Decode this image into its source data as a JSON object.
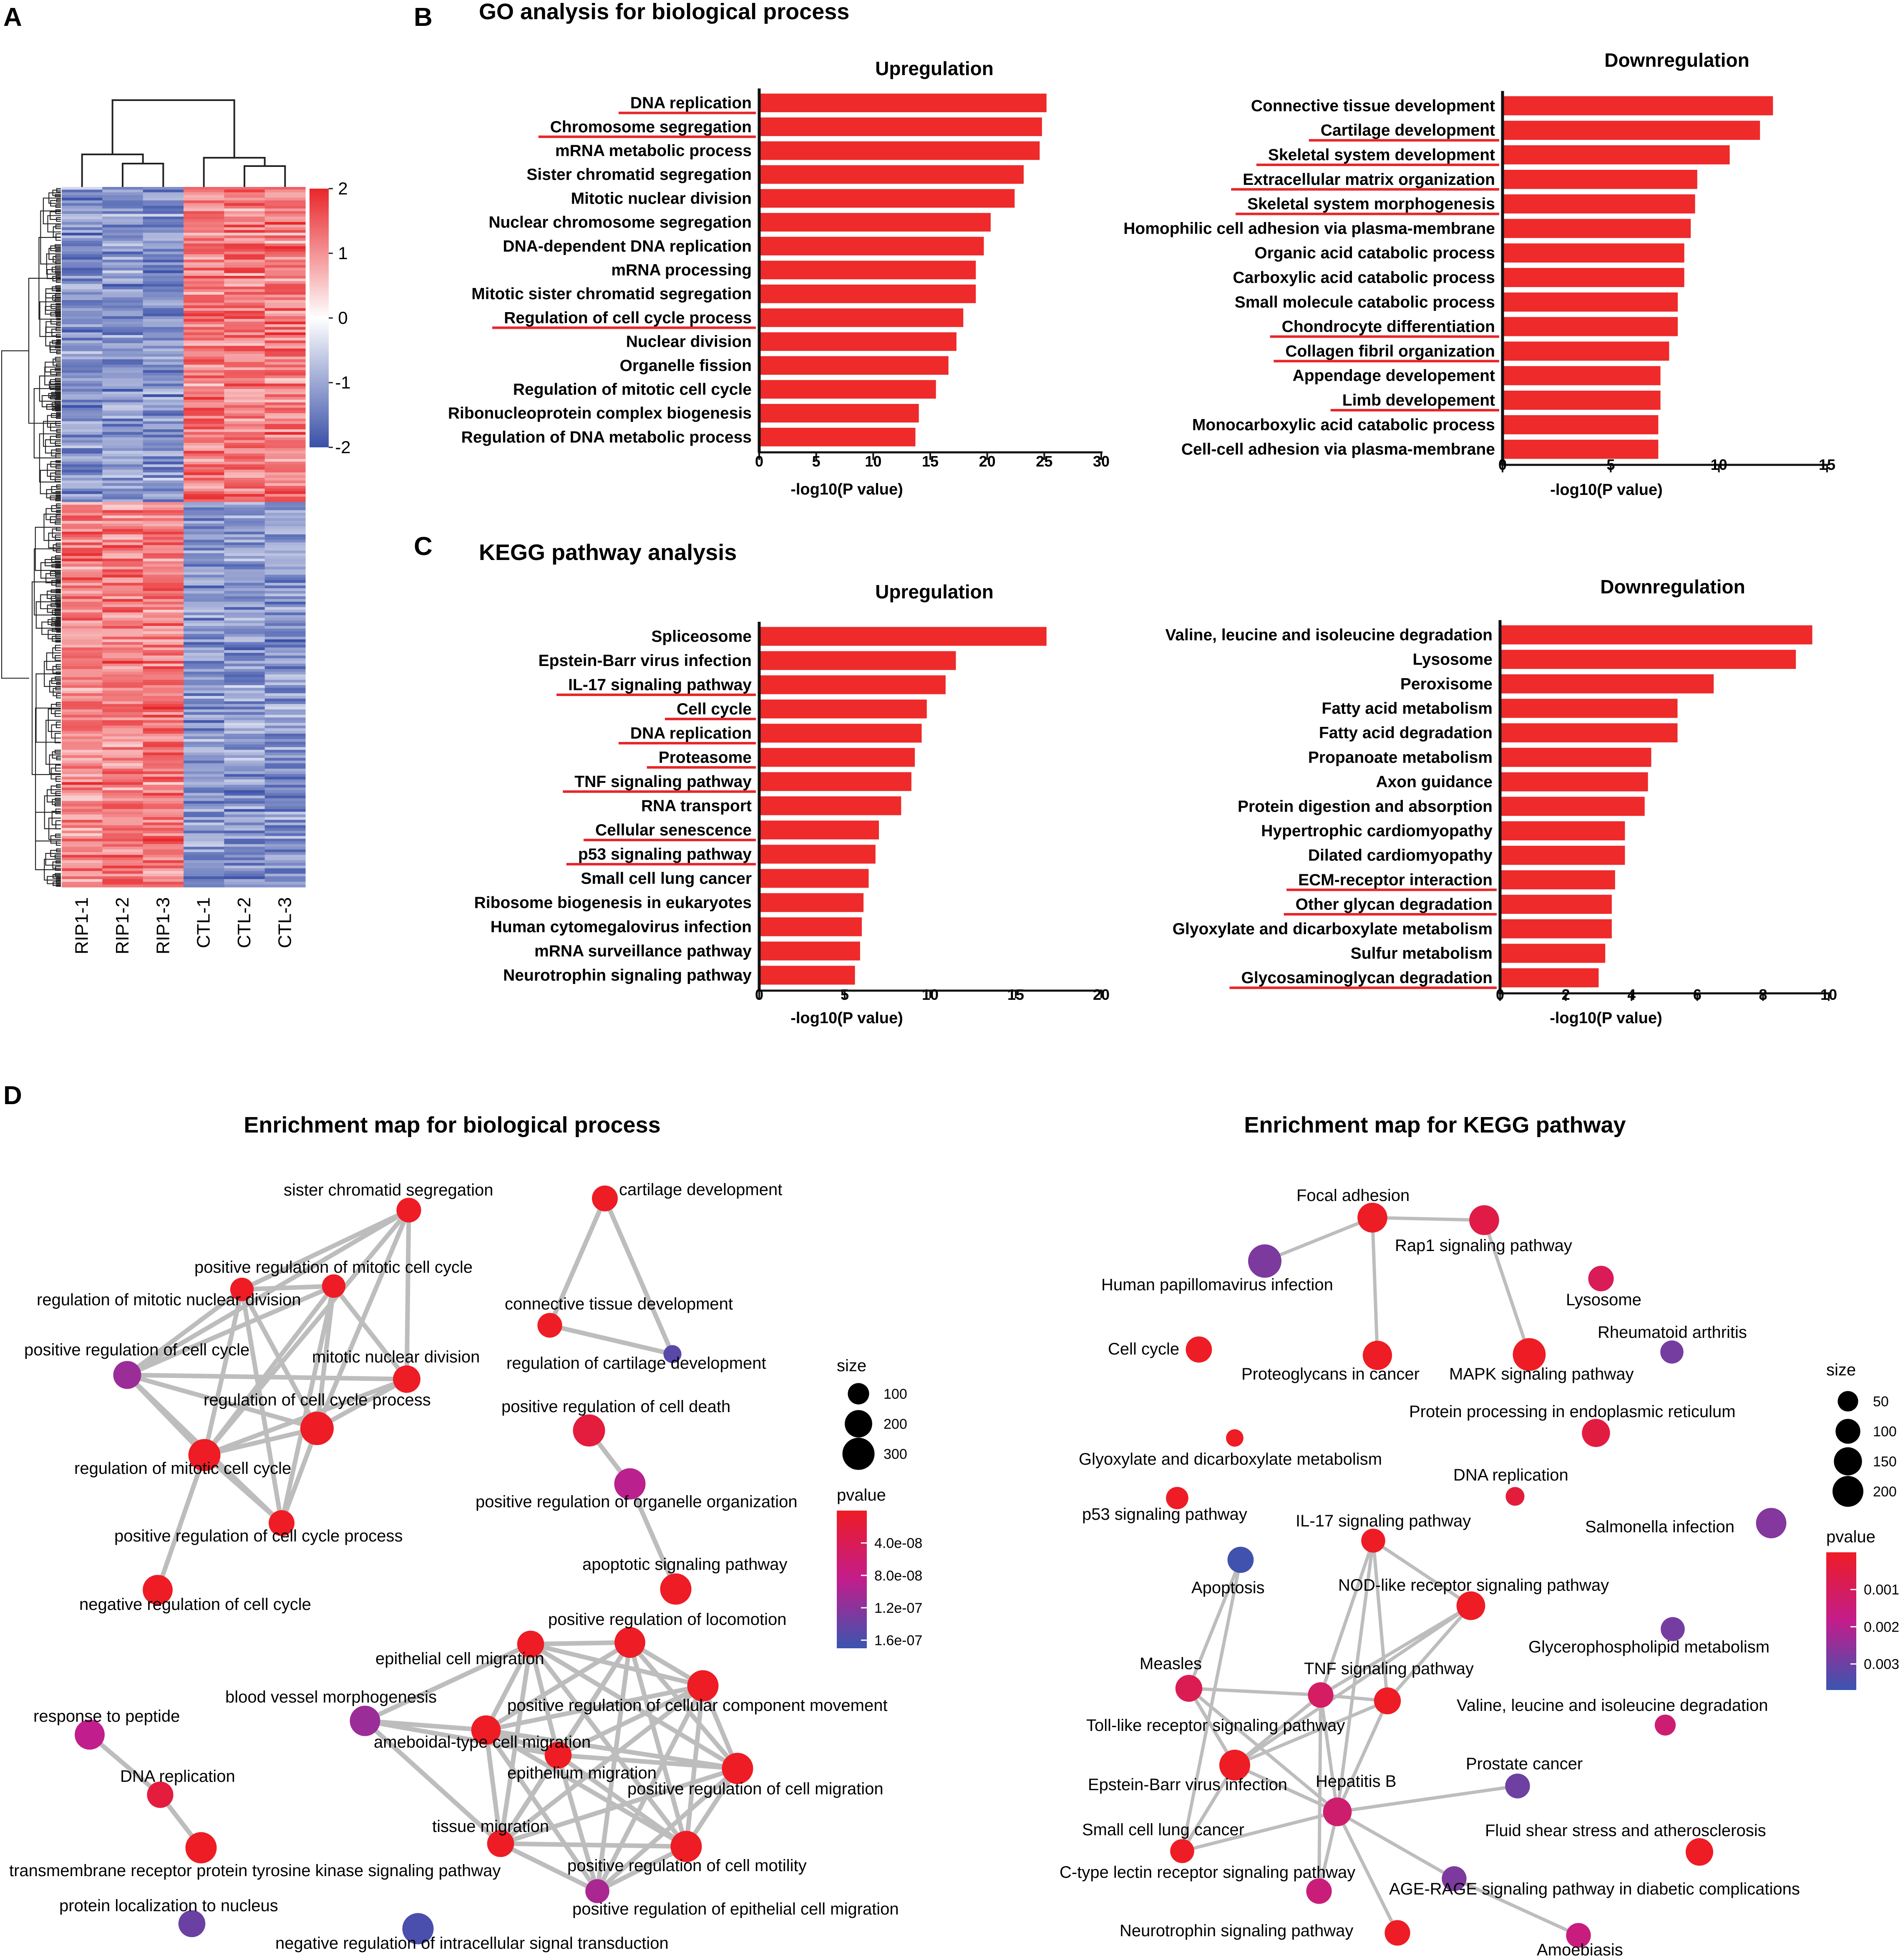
{
  "panels": {
    "A": "A",
    "B": "B",
    "B_title": "GO analysis for biological process",
    "C": "C",
    "C_title": "KEGG pathway analysis",
    "D": "D"
  },
  "colors": {
    "bar": "#ee2a2a",
    "underline": "#e8262a",
    "edge": "#bdbdbd",
    "heat_high": "#e8262a",
    "heat_mid": "#ffffff",
    "heat_low": "#3a50a8"
  },
  "heatmap": {
    "samples": [
      "RIP1-1",
      "RIP1-2",
      "RIP1-3",
      "CTL-1",
      "CTL-2",
      "CTL-3"
    ],
    "scale_ticks": [
      "2",
      "1",
      "0",
      "-1",
      "-2"
    ],
    "scale_values": [
      2,
      1,
      0,
      -1,
      -2
    ]
  },
  "chart_data": [
    {
      "id": "go_up",
      "type": "bar",
      "orientation": "horizontal",
      "title": "Upregulation",
      "xlabel": "-log10(P value)",
      "xlim": [
        0,
        30
      ],
      "xticks": [
        0,
        5,
        10,
        15,
        20,
        25,
        30
      ],
      "categories": [
        "DNA replication",
        "Chromosome segregation",
        "mRNA metabolic process",
        "Sister chromatid segregation",
        "Mitotic nuclear division",
        "Nuclear chromosome segregation",
        "DNA-dependent DNA replication",
        "mRNA processing",
        "Mitotic sister chromatid segregation",
        "Regulation of cell cycle process",
        "Nuclear division",
        "Organelle fission",
        "Regulation of mitotic cell cycle",
        "Ribonucleoprotein complex biogenesis",
        "Regulation of DNA metabolic process"
      ],
      "values": [
        25.2,
        24.8,
        24.6,
        23.2,
        22.4,
        20.3,
        19.7,
        19.0,
        19.0,
        17.9,
        17.3,
        16.6,
        15.5,
        14.0,
        13.7
      ],
      "underlined": [
        true,
        true,
        false,
        false,
        false,
        false,
        false,
        false,
        false,
        true,
        false,
        false,
        false,
        false,
        false
      ]
    },
    {
      "id": "go_down",
      "type": "bar",
      "orientation": "horizontal",
      "title": "Downregulation",
      "xlabel": "-log10(P value)",
      "xlim": [
        0,
        15
      ],
      "xticks": [
        0,
        5,
        10,
        15
      ],
      "categories": [
        "Connective tissue development",
        "Cartilage development",
        "Skeletal system development",
        "Extracellular matrix organization",
        "Skeletal system morphogenesis",
        "Homophilic cell adhesion via plasma-membrane",
        "Organic acid catabolic process",
        "Carboxylic acid catabolic process",
        "Small molecule catabolic process",
        "Chondrocyte differentiation",
        "Collagen fibril organization",
        "Appendage developement",
        "Limb developement",
        "Monocarboxylic acid catabolic process",
        "Cell-cell adhesion via plasma-membrane"
      ],
      "values": [
        12.5,
        11.9,
        10.5,
        9.0,
        8.9,
        8.7,
        8.4,
        8.4,
        8.1,
        8.1,
        7.7,
        7.3,
        7.3,
        7.2,
        7.2
      ],
      "underlined": [
        false,
        true,
        true,
        true,
        true,
        false,
        false,
        false,
        false,
        true,
        true,
        false,
        true,
        false,
        false
      ]
    },
    {
      "id": "kegg_up",
      "type": "bar",
      "orientation": "horizontal",
      "title": "Upregulation",
      "xlabel": "-log10(P value)",
      "xlim": [
        0,
        20
      ],
      "xticks": [
        0,
        5,
        10,
        15,
        20
      ],
      "categories": [
        "Spliceosome",
        "Epstein-Barr virus infection",
        "IL-17 signaling pathway",
        "Cell cycle",
        "DNA replication",
        "Proteasome",
        "TNF signaling pathway",
        "RNA transport",
        "Cellular senescence",
        "p53 signaling pathway",
        "Small cell lung cancer",
        "Ribosome biogenesis in eukaryotes",
        "Human cytomegalovirus infection",
        "mRNA surveillance pathway",
        "Neurotrophin signaling pathway"
      ],
      "values": [
        16.8,
        11.5,
        10.9,
        9.8,
        9.5,
        9.1,
        8.9,
        8.3,
        7.0,
        6.8,
        6.4,
        6.1,
        6.0,
        5.9,
        5.6
      ],
      "underlined": [
        false,
        false,
        true,
        true,
        true,
        true,
        true,
        false,
        true,
        true,
        false,
        false,
        false,
        false,
        false
      ]
    },
    {
      "id": "kegg_down",
      "type": "bar",
      "orientation": "horizontal",
      "title": "Downregulation",
      "xlabel": "-log10(P value)",
      "xlim": [
        0,
        10
      ],
      "xticks": [
        0,
        2,
        4,
        6,
        8,
        10
      ],
      "categories": [
        "Valine, leucine and isoleucine degradation",
        "Lysosome",
        "Peroxisome",
        "Fatty acid metabolism",
        "Fatty acid degradation",
        "Propanoate metabolism",
        "Axon guidance",
        "Protein digestion and absorption",
        "Hypertrophic cardiomyopathy",
        "Dilated cardiomyopathy",
        "ECM-receptor interaction",
        "Other glycan degradation",
        "Glyoxylate and dicarboxylate metabolism",
        "Sulfur metabolism",
        "Glycosaminoglycan degradation"
      ],
      "values": [
        9.5,
        9.0,
        6.5,
        5.4,
        5.4,
        4.6,
        4.5,
        4.4,
        3.8,
        3.8,
        3.5,
        3.4,
        3.4,
        3.2,
        3.0
      ],
      "underlined": [
        false,
        false,
        false,
        false,
        false,
        false,
        false,
        false,
        false,
        false,
        true,
        true,
        false,
        false,
        true
      ]
    }
  ],
  "maps": {
    "bp": {
      "title": "Enrichment map for biological process",
      "nodes": [
        {
          "id": "scs",
          "label": "sister chromatid segregation",
          "size": 150,
          "pvalue": 0.0
        },
        {
          "id": "prmcc",
          "label": "positive regulation of mitotic cell cycle",
          "size": 130,
          "pvalue": 0.0
        },
        {
          "id": "rmnd",
          "label": "regulation of mitotic nuclear division",
          "size": 130,
          "pvalue": 0.0
        },
        {
          "id": "prcc",
          "label": "positive regulation of cell cycle",
          "size": 210,
          "pvalue": 1.1e-07
        },
        {
          "id": "mnd",
          "label": "mitotic nuclear division",
          "size": 200,
          "pvalue": 0.0
        },
        {
          "id": "rccp",
          "label": "regulation of cell cycle process",
          "size": 330,
          "pvalue": 0.0
        },
        {
          "id": "rmcc",
          "label": "regulation of mitotic cell cycle",
          "size": 300,
          "pvalue": 0.0
        },
        {
          "id": "prccp",
          "label": "positive regulation of cell cycle process",
          "size": 170,
          "pvalue": 0.0
        },
        {
          "id": "nrcc",
          "label": "negative regulation of cell cycle",
          "size": 250,
          "pvalue": 0.0
        },
        {
          "id": "cd",
          "label": "cartilage development",
          "size": 170,
          "pvalue": 0.0
        },
        {
          "id": "ctd",
          "label": "connective tissue development",
          "size": 150,
          "pvalue": 0.0
        },
        {
          "id": "rcd",
          "label": "regulation of cartilage development",
          "size": 60,
          "pvalue": 1.5e-07
        },
        {
          "id": "prcdeath",
          "label": "positive regulation of cell death",
          "size": 300,
          "pvalue": 2e-08
        },
        {
          "id": "proo",
          "label": "positive regulation of organelle organization",
          "size": 280,
          "pvalue": 9e-08
        },
        {
          "id": "asp",
          "label": "apoptotic signaling pathway",
          "size": 280,
          "pvalue": 0.0
        },
        {
          "id": "prl",
          "label": "positive regulation of locomotion",
          "size": 270,
          "pvalue": 0.0
        },
        {
          "id": "ecm",
          "label": "epithelial cell migration",
          "size": 190,
          "pvalue": 0.0
        },
        {
          "id": "prccm",
          "label": "positive regulation of cellular component movement",
          "size": 280,
          "pvalue": 0.0
        },
        {
          "id": "bvm",
          "label": "blood vessel morphogenesis",
          "size": 260,
          "pvalue": 1.1e-07
        },
        {
          "id": "atcm",
          "label": "ameboidal-type cell migration",
          "size": 240,
          "pvalue": 0.0
        },
        {
          "id": "em",
          "label": "epithelium migration",
          "size": 190,
          "pvalue": 0.0
        },
        {
          "id": "prcmig",
          "label": "positive regulation of cell migration",
          "size": 280,
          "pvalue": 0.0
        },
        {
          "id": "tm",
          "label": "tissue migration",
          "size": 190,
          "pvalue": 0.0
        },
        {
          "id": "prcmot",
          "label": "positive regulation of cell motility",
          "size": 280,
          "pvalue": 0.0
        },
        {
          "id": "precm",
          "label": "positive regulation of epithelial cell migration",
          "size": 140,
          "pvalue": 1e-07
        },
        {
          "id": "rtp",
          "label": "response to peptide",
          "size": 250,
          "pvalue": 8.5e-08
        },
        {
          "id": "dnarep",
          "label": "DNA replication",
          "size": 180,
          "pvalue": 2e-08
        },
        {
          "id": "trptk",
          "label": "transmembrane receptor protein tyrosine kinase signaling pathway",
          "size": 280,
          "pvalue": 0.0
        },
        {
          "id": "pln",
          "label": "protein localization to nucleus",
          "size": 190,
          "pvalue": 1.4e-07
        },
        {
          "id": "nrist",
          "label": "negative regulation of intracellular signal transduction",
          "size": 280,
          "pvalue": 1.6e-07
        }
      ],
      "legend": {
        "size_title": "size",
        "sizes": [
          100,
          200,
          300
        ],
        "pvalue_title": "pvalue",
        "pvalue_ticks": [
          "4.0e-08",
          "8.0e-08",
          "1.2e-07",
          "1.6e-07"
        ],
        "pvalue_values": [
          4e-08,
          8e-08,
          1.2e-07,
          1.6e-07
        ],
        "pvalue_range": [
          0,
          1.7e-07
        ]
      }
    },
    "kegg": {
      "title": "Enrichment map for KEGG pathway",
      "nodes": [
        {
          "id": "fa",
          "label": "Focal adhesion",
          "size": 180,
          "pvalue": 0.0
        },
        {
          "id": "rap1",
          "label": "Rap1 signaling pathway",
          "size": 180,
          "pvalue": 0.0006
        },
        {
          "id": "hpv",
          "label": "Human papillomavirus infection",
          "size": 250,
          "pvalue": 0.0028
        },
        {
          "id": "lys",
          "label": "Lysosome",
          "size": 110,
          "pvalue": 0.0009
        },
        {
          "id": "ra",
          "label": "Rheumatoid arthritis",
          "size": 80,
          "pvalue": 0.0029
        },
        {
          "id": "cc",
          "label": "Cell cycle",
          "size": 120,
          "pvalue": 0.0
        },
        {
          "id": "pgc",
          "label": "Proteoglycans in cancer",
          "size": 170,
          "pvalue": 0.0
        },
        {
          "id": "mapk",
          "label": "MAPK signaling pathway",
          "size": 240,
          "pvalue": 0.0
        },
        {
          "id": "ppe",
          "label": "Protein processing in endoplasmic reticulum",
          "size": 150,
          "pvalue": 0.0005
        },
        {
          "id": "gdm",
          "label": "Glyoxylate and dicarboxylate metabolism",
          "size": 25,
          "pvalue": 0.0
        },
        {
          "id": "dnar",
          "label": "DNA replication",
          "size": 35,
          "pvalue": 0.0004
        },
        {
          "id": "p53",
          "label": "p53 signaling pathway",
          "size": 70,
          "pvalue": 0.0
        },
        {
          "id": "il17",
          "label": "IL-17 signaling pathway",
          "size": 90,
          "pvalue": 0.0
        },
        {
          "id": "sal",
          "label": "Salmonella infection",
          "size": 190,
          "pvalue": 0.0027
        },
        {
          "id": "apo",
          "label": "Apoptosis",
          "size": 120,
          "pvalue": 0.0036
        },
        {
          "id": "nod",
          "label": "NOD-like receptor signaling pathway",
          "size": 160,
          "pvalue": 0.0
        },
        {
          "id": "gpm",
          "label": "Glycerophospholipid metabolism",
          "size": 90,
          "pvalue": 0.0029
        },
        {
          "id": "mea",
          "label": "Measles",
          "size": 130,
          "pvalue": 0.0008
        },
        {
          "id": "tnf",
          "label": "TNF signaling pathway",
          "size": 110,
          "pvalue": 0.0011
        },
        {
          "id": "tnf2",
          "label": "TNF signaling pathway",
          "size": 130,
          "pvalue": 0.0
        },
        {
          "id": "tlr",
          "label": "Toll-like receptor signaling pathway",
          "size": 180,
          "pvalue": 0.0002
        },
        {
          "id": "vli",
          "label": "Valine, leucine and isoleucine degradation",
          "size": 55,
          "pvalue": 0.0014
        },
        {
          "id": "ebv",
          "label": "Epstein-Barr virus infection",
          "size": 200,
          "pvalue": 0.0
        },
        {
          "id": "hepb",
          "label": "Hepatitis B",
          "size": 160,
          "pvalue": 0.0013
        },
        {
          "id": "pc",
          "label": "Prostate cancer",
          "size": 100,
          "pvalue": 0.003
        },
        {
          "id": "sclc",
          "label": "Small cell lung cancer",
          "size": 90,
          "pvalue": 0.0
        },
        {
          "id": "ctlr",
          "label": "C-type lectin receptor signaling pathway",
          "size": 110,
          "pvalue": 0.0015
        },
        {
          "id": "fss",
          "label": "Fluid shear stress and atherosclerosis",
          "size": 140,
          "pvalue": 0.0
        },
        {
          "id": "age",
          "label": "AGE-RAGE signaling pathway in diabetic complications",
          "size": 100,
          "pvalue": 0.0028
        },
        {
          "id": "neuro",
          "label": "Neurotrophin signaling pathway",
          "size": 110,
          "pvalue": 0.0
        },
        {
          "id": "amo",
          "label": "Amoebiasis",
          "size": 100,
          "pvalue": 0.0016
        }
      ],
      "legend": {
        "size_title": "size",
        "sizes": [
          50,
          100,
          150,
          200
        ],
        "pvalue_title": "pvalue",
        "pvalue_ticks": [
          "0.001",
          "0.002",
          "0.003"
        ],
        "pvalue_values": [
          0.001,
          0.002,
          0.003
        ],
        "pvalue_range": [
          0,
          0.0037
        ]
      }
    }
  }
}
